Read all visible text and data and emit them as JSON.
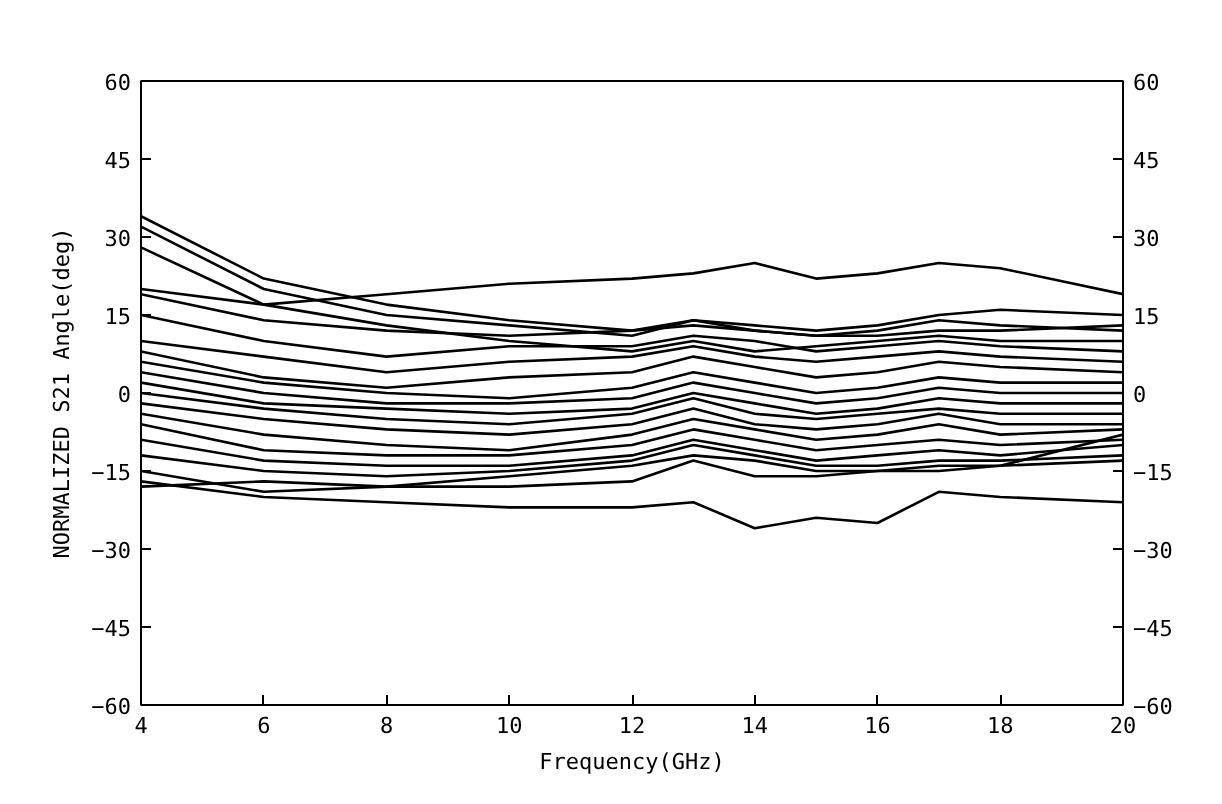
{
  "chart_data": {
    "type": "line",
    "xlabel": "Frequency(GHz)",
    "ylabel": "NORMALIZED S21 Angle(deg)",
    "x": [
      4,
      6,
      8,
      10,
      12,
      13,
      14,
      15,
      16,
      17,
      18,
      20
    ],
    "xlim": [
      4,
      20
    ],
    "ylim": [
      -60,
      60
    ],
    "xticks": [
      4,
      6,
      8,
      10,
      12,
      14,
      16,
      18,
      20
    ],
    "yticks": [
      -60,
      -45,
      -30,
      -15,
      0,
      15,
      30,
      45,
      60
    ],
    "y2lim": [
      -60,
      60
    ],
    "y2ticks": [
      -60,
      -45,
      -30,
      -15,
      0,
      15,
      30,
      45,
      60
    ],
    "grid": false,
    "line_style": "solid",
    "series": [
      {
        "color": "#000000",
        "values": [
          34,
          22,
          17,
          14,
          12,
          13,
          12,
          11,
          11,
          12,
          12,
          13
        ]
      },
      {
        "color": "#000000",
        "values": [
          32,
          20,
          15,
          13,
          11,
          14,
          12,
          11,
          12,
          14,
          13,
          12
        ]
      },
      {
        "color": "#000000",
        "values": [
          28,
          17,
          13,
          10,
          8,
          10,
          8,
          9,
          10,
          11,
          10,
          10
        ]
      },
      {
        "color": "#000000",
        "values": [
          20,
          17,
          19,
          21,
          22,
          23,
          25,
          22,
          23,
          25,
          24,
          19
        ]
      },
      {
        "color": "#000000",
        "values": [
          19,
          14,
          12,
          11,
          12,
          14,
          13,
          12,
          13,
          15,
          16,
          15
        ]
      },
      {
        "color": "#000000",
        "values": [
          15,
          10,
          7,
          9,
          9,
          11,
          10,
          8,
          9,
          10,
          9,
          8
        ]
      },
      {
        "color": "#000000",
        "values": [
          10,
          7,
          4,
          6,
          7,
          9,
          7,
          6,
          7,
          8,
          7,
          6
        ]
      },
      {
        "color": "#000000",
        "values": [
          8,
          3,
          1,
          3,
          4,
          7,
          5,
          3,
          4,
          6,
          5,
          4
        ]
      },
      {
        "color": "#000000",
        "values": [
          6,
          2,
          0,
          -1,
          1,
          4,
          2,
          0,
          1,
          3,
          2,
          2
        ]
      },
      {
        "color": "#000000",
        "values": [
          4,
          0,
          -2,
          -2,
          -1,
          2,
          0,
          -2,
          -1,
          1,
          0,
          0
        ]
      },
      {
        "color": "#000000",
        "values": [
          2,
          -2,
          -3,
          -4,
          -3,
          0,
          -2,
          -4,
          -3,
          -1,
          -2,
          -2
        ]
      },
      {
        "color": "#000000",
        "values": [
          0,
          -3,
          -5,
          -6,
          -4,
          -1,
          -4,
          -5,
          -4,
          -3,
          -4,
          -4
        ]
      },
      {
        "color": "#000000",
        "values": [
          -2,
          -5,
          -7,
          -8,
          -6,
          -3,
          -6,
          -7,
          -6,
          -4,
          -6,
          -6
        ]
      },
      {
        "color": "#000000",
        "values": [
          -4,
          -8,
          -10,
          -11,
          -8,
          -5,
          -7,
          -9,
          -8,
          -6,
          -8,
          -7
        ]
      },
      {
        "color": "#000000",
        "values": [
          -6,
          -11,
          -12,
          -12,
          -10,
          -7,
          -9,
          -11,
          -10,
          -9,
          -10,
          -9
        ]
      },
      {
        "color": "#000000",
        "values": [
          -9,
          -13,
          -14,
          -14,
          -12,
          -9,
          -11,
          -13,
          -12,
          -11,
          -12,
          -10
        ]
      },
      {
        "color": "#000000",
        "values": [
          -12,
          -15,
          -16,
          -15,
          -13,
          -10,
          -12,
          -14,
          -14,
          -13,
          -13,
          -12
        ]
      },
      {
        "color": "#000000",
        "values": [
          -15,
          -19,
          -18,
          -16,
          -14,
          -12,
          -13,
          -15,
          -15,
          -14,
          -14,
          -8
        ]
      },
      {
        "color": "#000000",
        "values": [
          -18,
          -17,
          -18,
          -18,
          -17,
          -13,
          -16,
          -16,
          -15,
          -15,
          -14,
          -13
        ]
      },
      {
        "color": "#000000",
        "values": [
          -17,
          -20,
          -21,
          -22,
          -22,
          -21,
          -26,
          -24,
          -25,
          -19,
          -20,
          -21
        ]
      }
    ]
  }
}
